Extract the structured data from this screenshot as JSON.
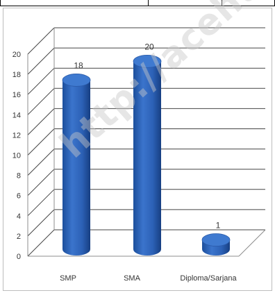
{
  "chart_data": {
    "type": "bar",
    "categories": [
      "SMP",
      "SMA",
      "Diploma/Sarjana"
    ],
    "values": [
      18,
      20,
      1
    ],
    "data_labels": [
      "18",
      "20",
      "1"
    ],
    "title": "",
    "xlabel": "",
    "ylabel": "",
    "ylim": [
      0,
      20
    ],
    "yticks": [
      0,
      2,
      4,
      6,
      8,
      10,
      12,
      14,
      16,
      18,
      20
    ],
    "grid": true,
    "style": "3d-cylinder",
    "bar_color": "#2f63b5",
    "bar_top_color": "#3f7ad0"
  },
  "watermark": {
    "text": "http://acehutarakan"
  }
}
